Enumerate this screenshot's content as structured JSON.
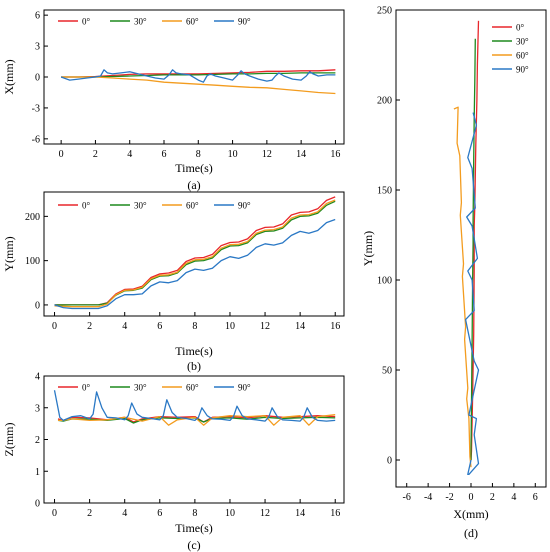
{
  "series_colors": {
    "0°": "#e8262b",
    "30°": "#1f8a1f",
    "60°": "#f39c1f",
    "90°": "#2a78c5"
  },
  "chart_data": [
    {
      "id": "a",
      "type": "line",
      "caption": "(a)",
      "xlabel": "Time(s)",
      "ylabel": "X(mm)",
      "xlim": [
        -1,
        16.5
      ],
      "ylim": [
        -6.5,
        6.5
      ],
      "xticks": [
        0,
        2,
        4,
        6,
        8,
        10,
        12,
        14,
        16
      ],
      "yticks": [
        -6,
        -3,
        0,
        3,
        6
      ],
      "legend_position": "top-left",
      "series": [
        {
          "name": "0°",
          "x": [
            0,
            1,
            2,
            3,
            4,
            5,
            6,
            7,
            8,
            9,
            10,
            11,
            12,
            13,
            14,
            15,
            16
          ],
          "y": [
            0,
            0,
            0.05,
            0.15,
            0.25,
            0.3,
            0.3,
            0.3,
            0.3,
            0.35,
            0.4,
            0.45,
            0.55,
            0.55,
            0.6,
            0.6,
            0.7
          ]
        },
        {
          "name": "30°",
          "x": [
            0,
            1,
            2,
            3,
            4,
            5,
            6,
            7,
            8,
            9,
            10,
            11,
            12,
            13,
            14,
            15,
            16
          ],
          "y": [
            0,
            0,
            0,
            0.05,
            0.1,
            0.15,
            0.2,
            0.2,
            0.2,
            0.25,
            0.3,
            0.3,
            0.35,
            0.35,
            0.4,
            0.4,
            0.4
          ]
        },
        {
          "name": "60°",
          "x": [
            0,
            1,
            2,
            3,
            4,
            5,
            6,
            7,
            8,
            9,
            10,
            11,
            12,
            13,
            14,
            15,
            16
          ],
          "y": [
            0,
            0,
            0,
            -0.1,
            -0.2,
            -0.3,
            -0.5,
            -0.6,
            -0.7,
            -0.8,
            -0.9,
            -1.0,
            -1.05,
            -1.2,
            -1.35,
            -1.5,
            -1.6
          ]
        },
        {
          "name": "90°",
          "x": [
            0,
            0.5,
            1,
            1.5,
            2,
            2.3,
            2.5,
            2.7,
            3,
            3.5,
            4,
            4.5,
            5,
            5.5,
            6,
            6.3,
            6.5,
            6.7,
            7,
            7.5,
            8,
            8.3,
            8.5,
            8.7,
            9,
            9.5,
            10,
            10.3,
            10.5,
            10.7,
            11,
            11.5,
            12,
            12.3,
            12.5,
            12.7,
            13,
            13.5,
            14,
            14.3,
            14.5,
            14.7,
            15,
            15.5,
            16
          ],
          "y": [
            0,
            -0.3,
            -0.2,
            -0.1,
            0,
            0.1,
            0.7,
            0.4,
            0.3,
            0.4,
            0.5,
            0.3,
            0.1,
            -0.1,
            -0.2,
            0.2,
            0.7,
            0.4,
            0.3,
            0.2,
            -0.3,
            -0.5,
            0.1,
            0.3,
            0.1,
            -0.1,
            -0.3,
            0.2,
            0.6,
            0.3,
            0.1,
            -0.2,
            -0.4,
            -0.3,
            0.1,
            0.4,
            0.1,
            -0.2,
            -0.3,
            0.1,
            0.5,
            0.3,
            0.1,
            0.2,
            0.2
          ]
        }
      ]
    },
    {
      "id": "b",
      "type": "line",
      "caption": "(b)",
      "xlabel": "Time(s)",
      "ylabel": "Y(mm)",
      "xlim": [
        -0.6,
        16.5
      ],
      "ylim": [
        -25,
        255
      ],
      "xticks": [
        0,
        2,
        4,
        6,
        8,
        10,
        12,
        14,
        16
      ],
      "yticks": [
        0,
        100,
        200
      ],
      "legend_position": "top-left",
      "series": [
        {
          "name": "0°",
          "x": [
            0,
            1,
            2,
            2.5,
            3,
            3.5,
            4,
            4.5,
            5,
            5.5,
            6,
            6.5,
            7,
            7.5,
            8,
            8.5,
            9,
            9.5,
            10,
            10.5,
            11,
            11.5,
            12,
            12.5,
            13,
            13.5,
            14,
            14.5,
            15,
            15.5,
            16
          ],
          "y": [
            0,
            0,
            0,
            0,
            5,
            25,
            35,
            36,
            42,
            62,
            70,
            72,
            78,
            98,
            106,
            107,
            114,
            134,
            141,
            142,
            149,
            168,
            175,
            176,
            183,
            203,
            209,
            210,
            217,
            236,
            244
          ]
        },
        {
          "name": "30°",
          "x": [
            0,
            1,
            2,
            2.5,
            3,
            3.5,
            4,
            4.5,
            5,
            5.5,
            6,
            6.5,
            7,
            7.5,
            8,
            8.5,
            9,
            9.5,
            10,
            10.5,
            11,
            11.5,
            12,
            12.5,
            13,
            13.5,
            14,
            14.5,
            15,
            15.5,
            16
          ],
          "y": [
            0,
            0,
            0,
            0,
            4,
            22,
            32,
            33,
            38,
            57,
            65,
            66,
            72,
            91,
            99,
            100,
            106,
            125,
            133,
            134,
            140,
            159,
            166,
            167,
            173,
            192,
            200,
            201,
            207,
            225,
            234
          ]
        },
        {
          "name": "60°",
          "x": [
            0,
            1,
            2,
            2.5,
            3,
            3.5,
            4,
            4.5,
            5,
            5.5,
            6,
            6.5,
            7,
            7.5,
            8,
            8.5,
            9,
            9.5,
            10,
            10.5,
            11,
            11.5,
            12,
            12.5,
            13,
            13.5,
            14,
            14.5,
            15,
            15.5,
            16
          ],
          "y": [
            -2,
            -4,
            -4,
            -4,
            2,
            23,
            33,
            34,
            40,
            59,
            67,
            68,
            74,
            94,
            102,
            103,
            109,
            128,
            136,
            137,
            143,
            162,
            169,
            170,
            176,
            196,
            203,
            204,
            210,
            229,
            237
          ]
        },
        {
          "name": "90°",
          "x": [
            0,
            0.5,
            1,
            2,
            2.5,
            3,
            3.5,
            4,
            4.5,
            5,
            5.5,
            6,
            6.5,
            7,
            7.5,
            8,
            8.5,
            9,
            9.5,
            10,
            10.5,
            11,
            11.5,
            12,
            12.5,
            13,
            13.5,
            14,
            14.5,
            15,
            15.5,
            16
          ],
          "y": [
            0,
            -6,
            -8,
            -8,
            -8,
            -2,
            14,
            23,
            23,
            25,
            43,
            52,
            50,
            55,
            73,
            81,
            78,
            83,
            100,
            109,
            105,
            112,
            130,
            138,
            135,
            140,
            157,
            166,
            162,
            168,
            186,
            193
          ]
        }
      ]
    },
    {
      "id": "c",
      "type": "line",
      "caption": "(c)",
      "xlabel": "Time(s)",
      "ylabel": "Z(mm)",
      "xlim": [
        -0.6,
        16.5
      ],
      "ylim": [
        0,
        4
      ],
      "xticks": [
        0,
        2,
        4,
        6,
        8,
        10,
        12,
        14,
        16
      ],
      "yticks": [
        0,
        1,
        2,
        3,
        4
      ],
      "legend_position": "top",
      "series": [
        {
          "name": "0°",
          "x": [
            0.2,
            0.5,
            1,
            2,
            3,
            4,
            4.5,
            5,
            6,
            7,
            8,
            8.5,
            9,
            10,
            11,
            12,
            13,
            14,
            15,
            16
          ],
          "y": [
            2.65,
            2.6,
            2.7,
            2.68,
            2.62,
            2.7,
            2.55,
            2.65,
            2.72,
            2.7,
            2.72,
            2.55,
            2.7,
            2.72,
            2.68,
            2.75,
            2.7,
            2.72,
            2.75,
            2.72
          ]
        },
        {
          "name": "30°",
          "x": [
            0.2,
            0.5,
            1,
            2,
            3,
            4,
            4.5,
            5,
            6,
            7,
            8,
            8.5,
            9,
            10,
            11,
            12,
            13,
            14,
            15,
            16
          ],
          "y": [
            2.6,
            2.58,
            2.65,
            2.64,
            2.6,
            2.66,
            2.52,
            2.62,
            2.68,
            2.66,
            2.68,
            2.55,
            2.66,
            2.68,
            2.64,
            2.7,
            2.66,
            2.68,
            2.7,
            2.68
          ]
        },
        {
          "name": "60°",
          "x": [
            0.2,
            0.5,
            1,
            2,
            3,
            4,
            5,
            6,
            6.5,
            7,
            8,
            8.5,
            9,
            10,
            11,
            12,
            12.5,
            13,
            14,
            14.5,
            15,
            16
          ],
          "y": [
            2.6,
            2.6,
            2.65,
            2.6,
            2.62,
            2.7,
            2.58,
            2.72,
            2.45,
            2.62,
            2.7,
            2.45,
            2.68,
            2.75,
            2.72,
            2.75,
            2.45,
            2.7,
            2.75,
            2.45,
            2.72,
            2.78
          ]
        },
        {
          "name": "90°",
          "x": [
            0,
            0.3,
            0.5,
            1,
            1.5,
            2,
            2.2,
            2.4,
            2.7,
            3,
            3.5,
            4,
            4.2,
            4.4,
            4.7,
            5,
            5.5,
            6,
            6.2,
            6.4,
            6.7,
            7,
            7.5,
            8,
            8.2,
            8.4,
            8.7,
            9,
            9.5,
            10,
            10.2,
            10.4,
            10.7,
            11,
            11.5,
            12,
            12.2,
            12.4,
            12.7,
            13,
            13.5,
            14,
            14.2,
            14.4,
            14.7,
            15,
            15.5,
            16
          ],
          "y": [
            3.55,
            2.7,
            2.6,
            2.72,
            2.75,
            2.65,
            2.8,
            3.5,
            3.0,
            2.7,
            2.68,
            2.62,
            2.75,
            3.15,
            2.8,
            2.7,
            2.66,
            2.62,
            2.75,
            3.25,
            2.85,
            2.7,
            2.66,
            2.6,
            2.7,
            3.0,
            2.75,
            2.65,
            2.64,
            2.6,
            2.72,
            3.05,
            2.75,
            2.65,
            2.62,
            2.58,
            2.7,
            3.0,
            2.72,
            2.62,
            2.6,
            2.58,
            2.7,
            3.0,
            2.7,
            2.6,
            2.58,
            2.6
          ]
        }
      ]
    },
    {
      "id": "d",
      "type": "line",
      "caption": "(d)",
      "xlabel": "X(mm)",
      "ylabel": "Y(mm)",
      "xlim": [
        -7,
        7
      ],
      "ylim": [
        -15,
        250
      ],
      "xticks": [
        -6,
        -4,
        -2,
        0,
        2,
        4,
        6
      ],
      "yticks": [
        0,
        50,
        100,
        150,
        200,
        250
      ],
      "legend_position": "top-right",
      "series": [
        {
          "name": "0°",
          "x": [
            0,
            0.05,
            0.15,
            0.25,
            0.3,
            0.3,
            0.35,
            0.45,
            0.55,
            0.6,
            0.7
          ],
          "y": [
            0,
            5,
            35,
            70,
            106,
            130,
            141,
            175,
            200,
            220,
            244
          ]
        },
        {
          "name": "30°",
          "x": [
            0,
            0,
            0.05,
            0.1,
            0.15,
            0.2,
            0.2,
            0.25,
            0.3,
            0.35,
            0.4
          ],
          "y": [
            0,
            4,
            32,
            65,
            99,
            120,
            133,
            166,
            190,
            210,
            234
          ]
        },
        {
          "name": "60°",
          "x": [
            0,
            -0.1,
            -0.2,
            -0.4,
            -0.3,
            -0.6,
            -0.5,
            -0.8,
            -0.7,
            -1.0,
            -0.9,
            -1.05,
            -1.3,
            -1.2,
            -1.6
          ],
          "y": [
            -4,
            2,
            23,
            34,
            40,
            67,
            74,
            102,
            109,
            136,
            143,
            169,
            176,
            196,
            195
          ]
        },
        {
          "name": "90°",
          "x": [
            0,
            -0.3,
            -0.2,
            0.7,
            0.3,
            0.5,
            -0.2,
            0.7,
            0.3,
            -0.5,
            0.3,
            0.1,
            -0.3,
            0.6,
            0.1,
            -0.4,
            0.4,
            0.1,
            -0.3,
            0.5,
            0.2
          ],
          "y": [
            0,
            -8,
            -8,
            -2,
            14,
            23,
            25,
            50,
            55,
            78,
            83,
            100,
            105,
            112,
            130,
            135,
            140,
            162,
            168,
            186,
            193
          ]
        }
      ]
    }
  ]
}
